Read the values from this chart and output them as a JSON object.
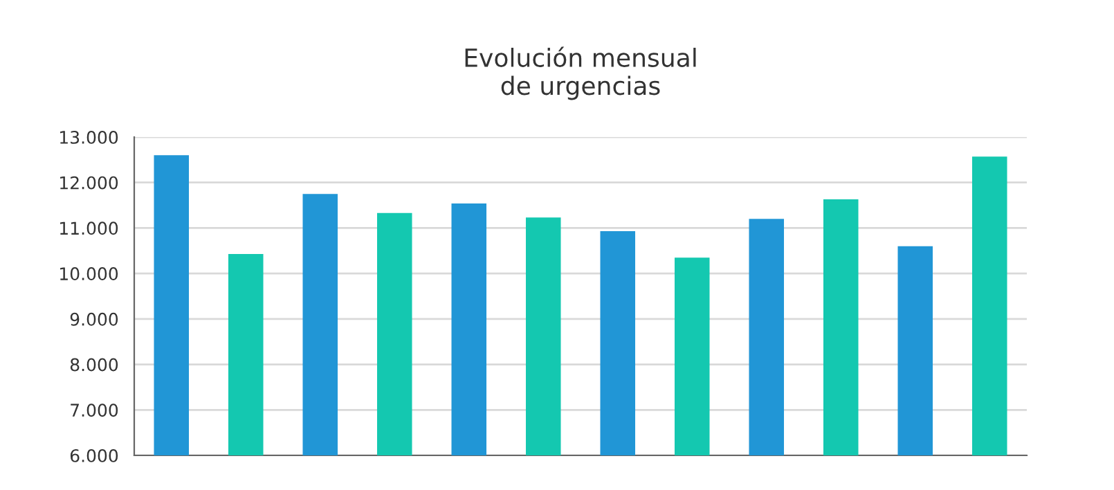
{
  "chart_data": {
    "type": "bar",
    "title": "Evolución mensual\nde urgencias",
    "categories": [
      null,
      null,
      null,
      null,
      null,
      null,
      null,
      null,
      null,
      null,
      null,
      null
    ],
    "values": [
      12600,
      10430,
      11750,
      11330,
      11540,
      11230,
      10930,
      10350,
      11200,
      11630,
      10600,
      12570
    ],
    "colors": [
      "#2196d6",
      "#14c8b0",
      "#2196d6",
      "#14c8b0",
      "#2196d6",
      "#14c8b0",
      "#2196d6",
      "#14c8b0",
      "#2196d6",
      "#14c8b0",
      "#2196d6",
      "#14c8b0"
    ],
    "ylim": [
      6000,
      13000
    ],
    "yticks": [
      {
        "value": 6000,
        "label": "6.000"
      },
      {
        "value": 7000,
        "label": "7.000"
      },
      {
        "value": 8000,
        "label": "8.000"
      },
      {
        "value": 9000,
        "label": "9.000"
      },
      {
        "value": 10000,
        "label": "10.000"
      },
      {
        "value": 11000,
        "label": "11.000"
      },
      {
        "value": 12000,
        "label": "12.000"
      },
      {
        "value": 13000,
        "label": "13.000"
      }
    ],
    "grid": "y"
  }
}
